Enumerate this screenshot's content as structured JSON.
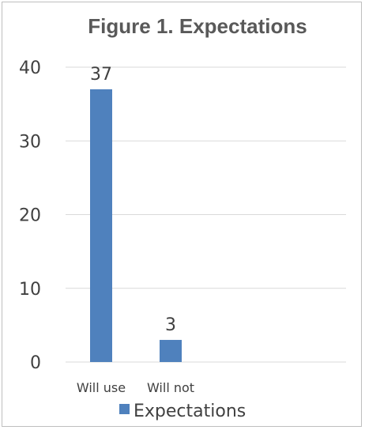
{
  "chart_data": {
    "type": "bar",
    "title": "Figure 1. Expectations",
    "categories": [
      "Will use",
      "Will not"
    ],
    "series": [
      {
        "name": "Expectations",
        "values": [
          37,
          3
        ],
        "color": "#4f81bd"
      }
    ],
    "ylim": [
      0,
      40
    ],
    "yticks": [
      0,
      10,
      20,
      30,
      40
    ],
    "grid": true,
    "legend_position": "bottom",
    "data_labels": true
  }
}
